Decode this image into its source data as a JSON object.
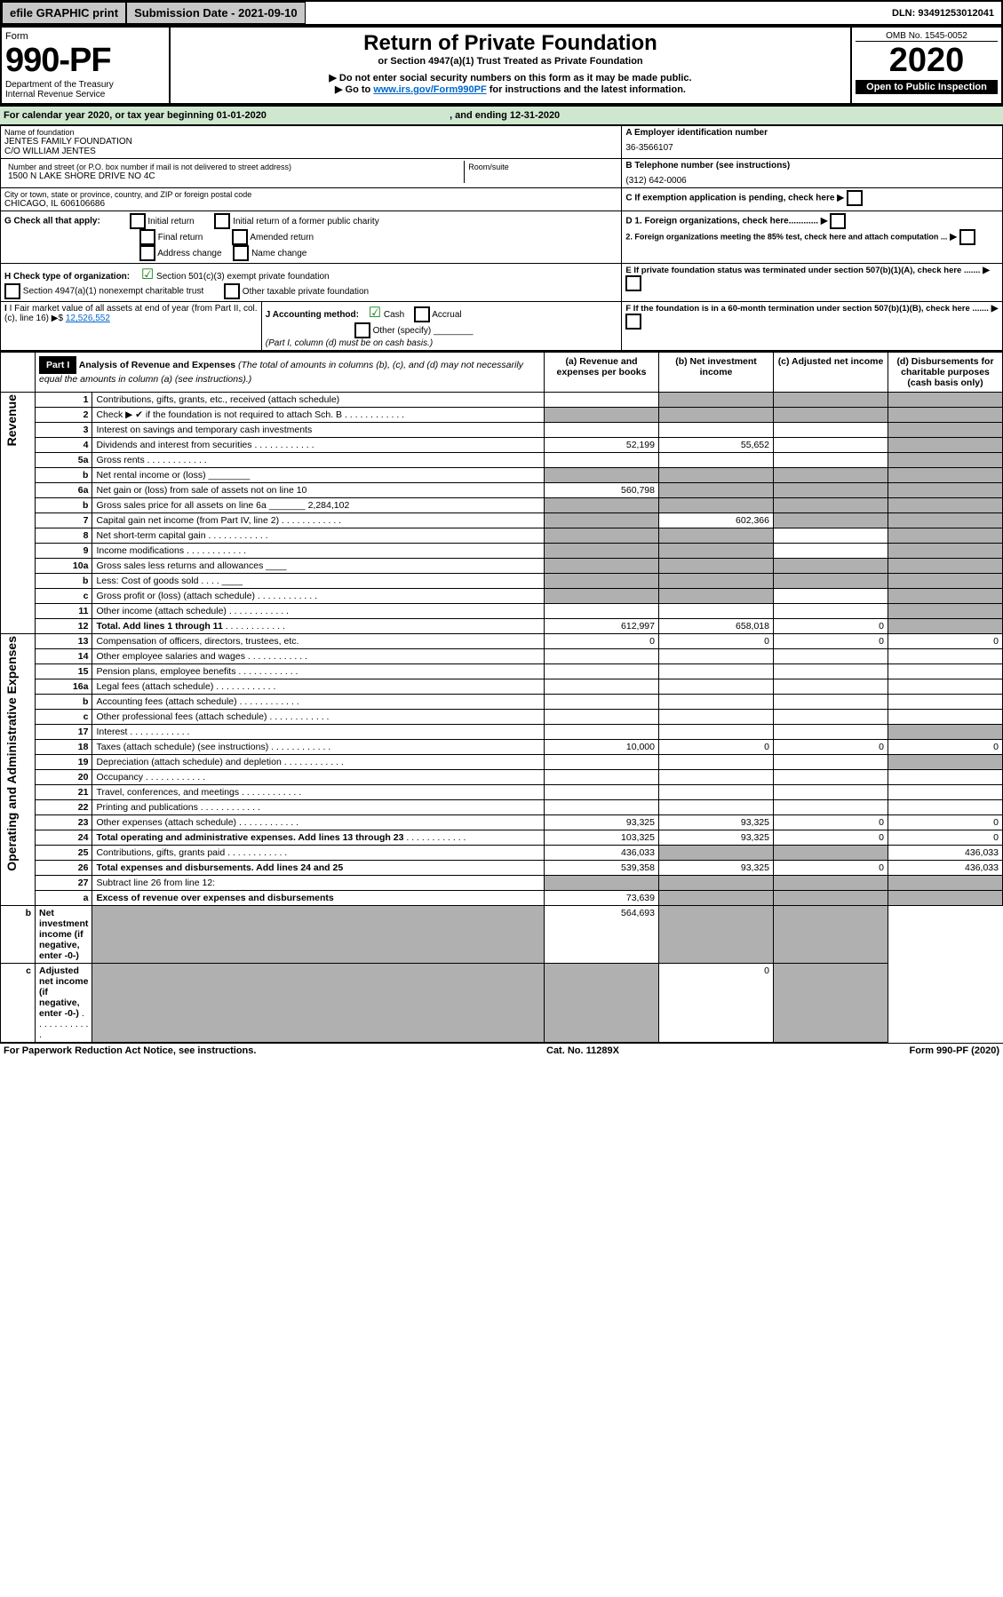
{
  "topbar": {
    "efile": "efile GRAPHIC print",
    "sub_label": "Submission Date - 2021-09-10",
    "dln": "DLN: 93491253012041"
  },
  "header": {
    "form_word": "Form",
    "form_no": "990-PF",
    "dept": "Department of the Treasury",
    "irs": "Internal Revenue Service",
    "title": "Return of Private Foundation",
    "subtitle": "or Section 4947(a)(1) Trust Treated as Private Foundation",
    "note1": "▶ Do not enter social security numbers on this form as it may be made public.",
    "note2_pre": "▶ Go to ",
    "note2_link": "www.irs.gov/Form990PF",
    "note2_post": " for instructions and the latest information.",
    "omb": "OMB No. 1545-0052",
    "year": "2020",
    "open": "Open to Public Inspection"
  },
  "cal_year": {
    "pre": "For calendar year 2020, or tax year beginning ",
    "begin": "01-01-2020",
    "mid": " , and ending ",
    "end": "12-31-2020"
  },
  "info": {
    "name_label": "Name of foundation",
    "name1": "JENTES FAMILY FOUNDATION",
    "name2": "C/O WILLIAM JENTES",
    "ein_label": "A Employer identification number",
    "ein": "36-3566107",
    "addr_label": "Number and street (or P.O. box number if mail is not delivered to street address)",
    "addr": "1500 N LAKE SHORE DRIVE NO 4C",
    "room_label": "Room/suite",
    "tel_label": "B Telephone number (see instructions)",
    "tel": "(312) 642-0006",
    "city_label": "City or town, state or province, country, and ZIP or foreign postal code",
    "city": "CHICAGO, IL  606106686",
    "c_text": "C If exemption application is pending, check here",
    "g_text": "G Check all that apply:",
    "g_opts": [
      "Initial return",
      "Initial return of a former public charity",
      "Final return",
      "Amended return",
      "Address change",
      "Name change"
    ],
    "d1": "D 1. Foreign organizations, check here............",
    "d2": "2. Foreign organizations meeting the 85% test, check here and attach computation ...",
    "h_text": "H Check type of organization:",
    "h1": "Section 501(c)(3) exempt private foundation",
    "h2": "Section 4947(a)(1) nonexempt charitable trust",
    "h3": "Other taxable private foundation",
    "e_text": "E If private foundation status was terminated under section 507(b)(1)(A), check here .......",
    "i_text": "I Fair market value of all assets at end of year (from Part II, col. (c), line 16) ▶$ ",
    "i_val": "12,526,552",
    "j_text": "J Accounting method:",
    "j1": "Cash",
    "j2": "Accrual",
    "j3": "Other (specify) ",
    "j_note": "(Part I, column (d) must be on cash basis.)",
    "f_text": "F  If the foundation is in a 60-month termination under section 507(b)(1)(B), check here ......."
  },
  "part1": {
    "label": "Part I",
    "title": "Analysis of Revenue and Expenses",
    "title_note": "(The total of amounts in columns (b), (c), and (d) may not necessarily equal the amounts in column (a) (see instructions).)",
    "cols": {
      "a": "(a) Revenue and expenses per books",
      "b": "(b) Net investment income",
      "c": "(c) Adjusted net income",
      "d": "(d) Disbursements for charitable purposes (cash basis only)"
    }
  },
  "side": {
    "rev": "Revenue",
    "exp": "Operating and Administrative Expenses"
  },
  "rows": [
    {
      "n": "1",
      "t": "Contributions, gifts, grants, etc., received (attach schedule)",
      "a": "",
      "b": "g",
      "c": "g",
      "d": "g"
    },
    {
      "n": "2",
      "t": "Check ▶ ✔ if the foundation is not required to attach Sch. B",
      "dots": 1,
      "a": "g",
      "b": "g",
      "c": "g",
      "d": "g"
    },
    {
      "n": "3",
      "t": "Interest on savings and temporary cash investments",
      "a": "",
      "b": "",
      "c": "",
      "d": "g"
    },
    {
      "n": "4",
      "t": "Dividends and interest from securities",
      "dots": 1,
      "a": "52,199",
      "b": "55,652",
      "c": "",
      "d": "g"
    },
    {
      "n": "5a",
      "t": "Gross rents",
      "dots": 1,
      "a": "",
      "b": "",
      "c": "",
      "d": "g"
    },
    {
      "n": "b",
      "t": "Net rental income or (loss)  ________",
      "a": "g",
      "b": "g",
      "c": "g",
      "d": "g"
    },
    {
      "n": "6a",
      "t": "Net gain or (loss) from sale of assets not on line 10",
      "a": "560,798",
      "b": "g",
      "c": "g",
      "d": "g"
    },
    {
      "n": "b",
      "t": "Gross sales price for all assets on line 6a _______ 2,284,102",
      "a": "g",
      "b": "g",
      "c": "g",
      "d": "g"
    },
    {
      "n": "7",
      "t": "Capital gain net income (from Part IV, line 2)",
      "dots": 1,
      "a": "g",
      "b": "602,366",
      "c": "g",
      "d": "g"
    },
    {
      "n": "8",
      "t": "Net short-term capital gain",
      "dots": 1,
      "a": "g",
      "b": "g",
      "c": "",
      "d": "g"
    },
    {
      "n": "9",
      "t": "Income modifications",
      "dots": 1,
      "a": "g",
      "b": "g",
      "c": "",
      "d": "g"
    },
    {
      "n": "10a",
      "t": "Gross sales less returns and allowances ____",
      "a": "g",
      "b": "g",
      "c": "g",
      "d": "g"
    },
    {
      "n": "b",
      "t": "Less: Cost of goods sold   .  .  .  . ____",
      "a": "g",
      "b": "g",
      "c": "g",
      "d": "g"
    },
    {
      "n": "c",
      "t": "Gross profit or (loss) (attach schedule)",
      "dots": 1,
      "a": "g",
      "b": "g",
      "c": "",
      "d": "g"
    },
    {
      "n": "11",
      "t": "Other income (attach schedule)",
      "dots": 1,
      "a": "",
      "b": "",
      "c": "",
      "d": "g"
    },
    {
      "n": "12",
      "t": "Total. Add lines 1 through 11",
      "dots": 1,
      "bold": 1,
      "a": "612,997",
      "b": "658,018",
      "c": "0",
      "d": "g"
    },
    {
      "n": "13",
      "t": "Compensation of officers, directors, trustees, etc.",
      "a": "0",
      "b": "0",
      "c": "0",
      "d": "0"
    },
    {
      "n": "14",
      "t": "Other employee salaries and wages",
      "dots": 1,
      "a": "",
      "b": "",
      "c": "",
      "d": ""
    },
    {
      "n": "15",
      "t": "Pension plans, employee benefits",
      "dots": 1,
      "a": "",
      "b": "",
      "c": "",
      "d": ""
    },
    {
      "n": "16a",
      "t": "Legal fees (attach schedule)",
      "dots": 1,
      "a": "",
      "b": "",
      "c": "",
      "d": ""
    },
    {
      "n": "b",
      "t": "Accounting fees (attach schedule)",
      "dots": 1,
      "a": "",
      "b": "",
      "c": "",
      "d": ""
    },
    {
      "n": "c",
      "t": "Other professional fees (attach schedule)",
      "dots": 1,
      "a": "",
      "b": "",
      "c": "",
      "d": ""
    },
    {
      "n": "17",
      "t": "Interest",
      "dots": 1,
      "a": "",
      "b": "",
      "c": "",
      "d": "g"
    },
    {
      "n": "18",
      "t": "Taxes (attach schedule) (see instructions)",
      "dots": 1,
      "a": "10,000",
      "b": "0",
      "c": "0",
      "d": "0"
    },
    {
      "n": "19",
      "t": "Depreciation (attach schedule) and depletion",
      "dots": 1,
      "a": "",
      "b": "",
      "c": "",
      "d": "g"
    },
    {
      "n": "20",
      "t": "Occupancy",
      "dots": 1,
      "a": "",
      "b": "",
      "c": "",
      "d": ""
    },
    {
      "n": "21",
      "t": "Travel, conferences, and meetings",
      "dots": 1,
      "a": "",
      "b": "",
      "c": "",
      "d": ""
    },
    {
      "n": "22",
      "t": "Printing and publications",
      "dots": 1,
      "a": "",
      "b": "",
      "c": "",
      "d": ""
    },
    {
      "n": "23",
      "t": "Other expenses (attach schedule)",
      "dots": 1,
      "a": "93,325",
      "b": "93,325",
      "c": "0",
      "d": "0"
    },
    {
      "n": "24",
      "t": "Total operating and administrative expenses. Add lines 13 through 23",
      "dots": 1,
      "bold": 1,
      "a": "103,325",
      "b": "93,325",
      "c": "0",
      "d": "0"
    },
    {
      "n": "25",
      "t": "Contributions, gifts, grants paid",
      "dots": 1,
      "a": "436,033",
      "b": "g",
      "c": "g",
      "d": "436,033"
    },
    {
      "n": "26",
      "t": "Total expenses and disbursements. Add lines 24 and 25",
      "bold": 1,
      "a": "539,358",
      "b": "93,325",
      "c": "0",
      "d": "436,033"
    },
    {
      "n": "27",
      "t": "Subtract line 26 from line 12:",
      "a": "g",
      "b": "g",
      "c": "g",
      "d": "g"
    },
    {
      "n": "a",
      "t": "Excess of revenue over expenses and disbursements",
      "bold": 1,
      "a": "73,639",
      "b": "g",
      "c": "g",
      "d": "g"
    },
    {
      "n": "b",
      "t": "Net investment income (if negative, enter -0-)",
      "bold": 1,
      "a": "g",
      "b": "564,693",
      "c": "g",
      "d": "g"
    },
    {
      "n": "c",
      "t": "Adjusted net income (if negative, enter -0-)",
      "dots": 1,
      "bold": 1,
      "a": "g",
      "b": "g",
      "c": "0",
      "d": "g"
    }
  ],
  "footer": {
    "left": "For Paperwork Reduction Act Notice, see instructions.",
    "mid": "Cat. No. 11289X",
    "right": "Form 990-PF (2020)"
  }
}
